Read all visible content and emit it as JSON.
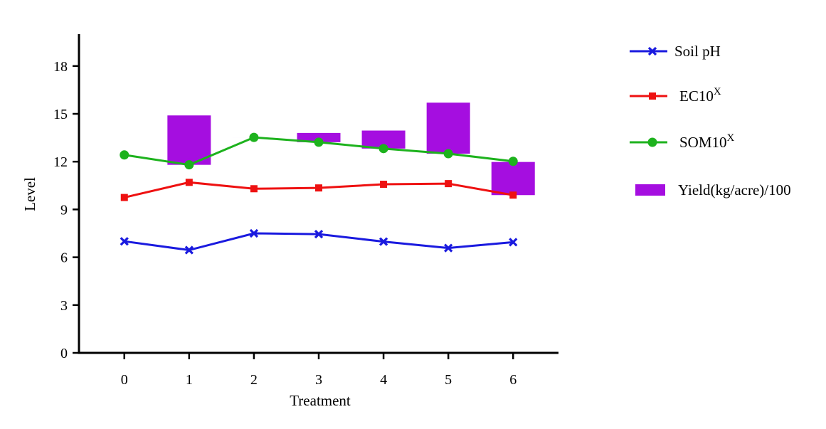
{
  "chart_data": {
    "type": "line",
    "title": "",
    "xlabel": "Treatment",
    "ylabel": "Level",
    "x": [
      0,
      1,
      2,
      3,
      4,
      5,
      6
    ],
    "x_ticks": [
      "0",
      "1",
      "2",
      "3",
      "4",
      "5",
      "6"
    ],
    "y_ticks": [
      "0",
      "3",
      "6",
      "9",
      "12",
      "15",
      "18"
    ],
    "ylim": [
      0,
      20
    ],
    "xlim": [
      -0.7,
      6.7
    ],
    "grid": false,
    "legend_position": "right",
    "series": [
      {
        "name": "Soil pH",
        "type": "line",
        "marker": "x",
        "color": "#1a1adf",
        "values": [
          7.0,
          6.45,
          7.5,
          7.45,
          6.98,
          6.58,
          6.95
        ]
      },
      {
        "name": "EC10",
        "name_sup": "X",
        "type": "line",
        "marker": "square",
        "color": "#ee1111",
        "values": [
          9.75,
          10.7,
          10.3,
          10.35,
          10.58,
          10.62,
          9.9
        ]
      },
      {
        "name": "SOM10",
        "name_sup": "X",
        "type": "line",
        "marker": "circle",
        "color": "#1db21d",
        "values": [
          12.42,
          11.8,
          13.52,
          13.22,
          12.82,
          12.5,
          12.02
        ]
      },
      {
        "name": "Yield(kg/acre)/100",
        "type": "floating-bar",
        "color": "#a50ee0",
        "ranges": [
          null,
          [
            11.8,
            14.9
          ],
          [
            13.52,
            13.52
          ],
          [
            13.22,
            13.8
          ],
          [
            12.82,
            13.95
          ],
          [
            12.5,
            15.7
          ],
          [
            9.9,
            11.98
          ]
        ]
      }
    ]
  }
}
